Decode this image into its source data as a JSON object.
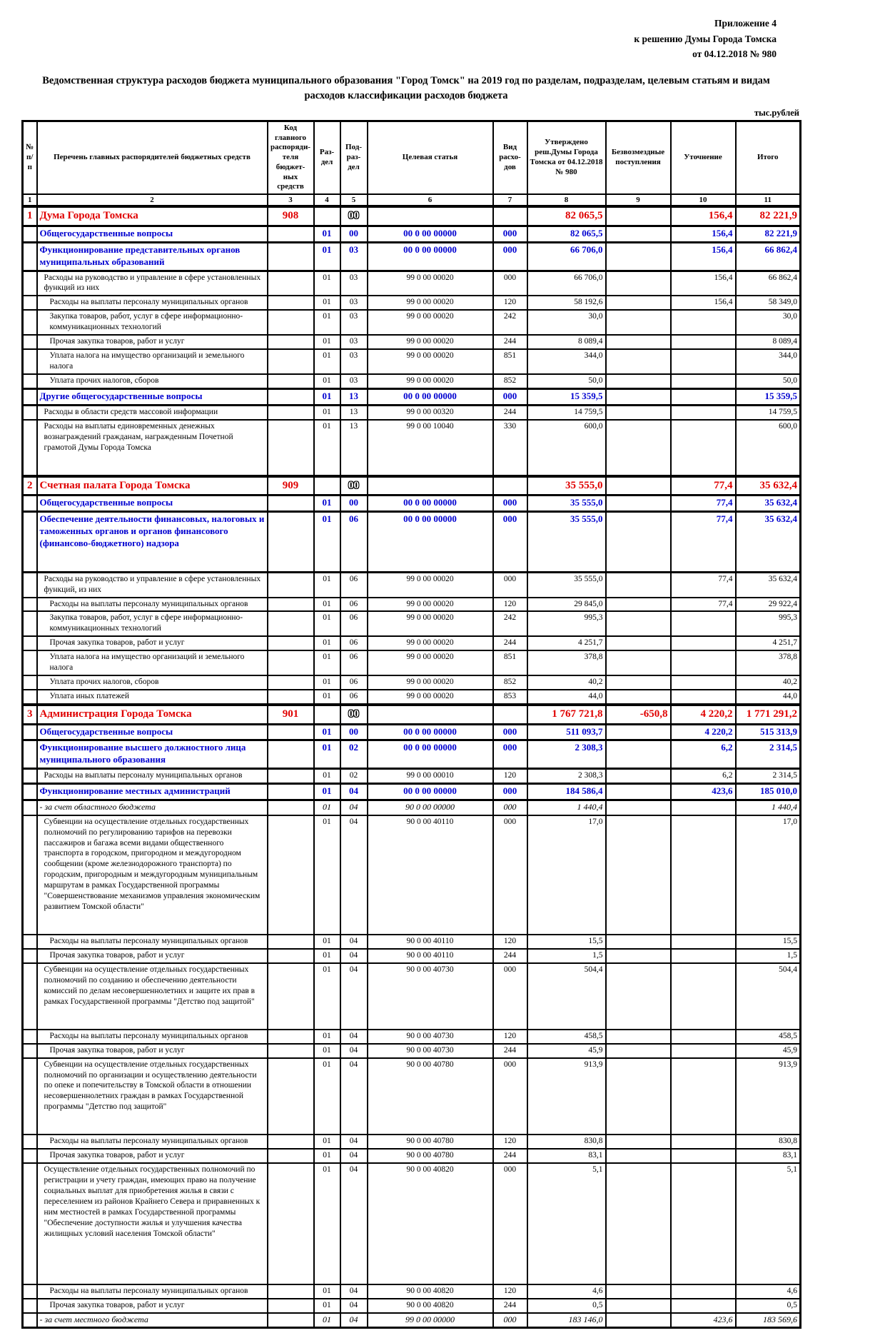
{
  "page": {
    "appendix_line1": "Приложение 4",
    "appendix_line2": "к решению Думы Города Томска",
    "appendix_line3": "от 04.12.2018 № 980",
    "title": "Ведомственная структура расходов бюджета муниципального образования \"Город Томск\" на 2019 год по разделам, подразделам, целевым статьям и видам расходов классификации расходов бюджета",
    "units_label": "тыс.рублей"
  },
  "colors": {
    "section_red": "#e00000",
    "subsection_blue": "#0000d0",
    "text_black": "#000000"
  },
  "table": {
    "columns": [
      "№ п/п",
      "Перечень главных распорядителей бюджетных средств",
      "Код главного распоряди-теля бюджет-ных средств",
      "Раз-дел",
      "Под-раз-дел",
      "Целевая статья",
      "Вид расхо-дов",
      "Утверждено реш.Думы Города Томска от 04.12.2018 № 980",
      "Безвозмездные поступления",
      "Уточнение",
      "Итого"
    ],
    "column_numbers": [
      "1",
      "2",
      "3",
      "4",
      "5",
      "6",
      "7",
      "8",
      "9",
      "10",
      "11"
    ],
    "rows": [
      {
        "n": "1",
        "name": "Дума Города Томска",
        "code": "908",
        "rz": "",
        "pr": "00",
        "pr_outline": true,
        "cs": "",
        "vr": "",
        "v8": "82 065,5",
        "v9": "",
        "v10": "156,4",
        "v11": "82 221,9",
        "style": "sec",
        "indent": 0
      },
      {
        "n": "",
        "name": "Общегосударственные вопросы",
        "code": "",
        "rz": "01",
        "pr": "00",
        "cs": "00 0 00 00000",
        "vr": "000",
        "v8": "82 065,5",
        "v9": "",
        "v10": "156,4",
        "v11": "82 221,9",
        "style": "sub",
        "indent": 0
      },
      {
        "n": "",
        "name": "Функционирование представительных органов муниципальных образований",
        "code": "",
        "rz": "01",
        "pr": "03",
        "cs": "00 0 00 00000",
        "vr": "000",
        "v8": "66 706,0",
        "v9": "",
        "v10": "156,4",
        "v11": "66 862,4",
        "style": "sub",
        "indent": 0
      },
      {
        "n": "",
        "name": "Расходы на руководство и управление в сфере установленных функций из них",
        "code": "",
        "rz": "01",
        "pr": "03",
        "cs": "99 0 00 00020",
        "vr": "000",
        "v8": "66 706,0",
        "v9": "",
        "v10": "156,4",
        "v11": "66 862,4",
        "style": "it",
        "indent": 1
      },
      {
        "n": "",
        "name": "Расходы на выплаты персоналу муниципальных органов",
        "code": "",
        "rz": "01",
        "pr": "03",
        "cs": "99 0 00 00020",
        "vr": "120",
        "v8": "58 192,6",
        "v9": "",
        "v10": "156,4",
        "v11": "58 349,0",
        "style": "it",
        "indent": 2
      },
      {
        "n": "",
        "name": "Закупка товаров, работ, услуг в сфере информационно-коммуникационных технологий",
        "code": "",
        "rz": "01",
        "pr": "03",
        "cs": "99 0 00 00020",
        "vr": "242",
        "v8": "30,0",
        "v9": "",
        "v10": "",
        "v11": "30,0",
        "style": "it",
        "indent": 2
      },
      {
        "n": "",
        "name": "Прочая закупка товаров, работ и услуг",
        "code": "",
        "rz": "01",
        "pr": "03",
        "cs": "99 0 00 00020",
        "vr": "244",
        "v8": "8 089,4",
        "v9": "",
        "v10": "",
        "v11": "8 089,4",
        "style": "it",
        "indent": 2
      },
      {
        "n": "",
        "name": "Уплата налога на имущество организаций и земельного налога",
        "code": "",
        "rz": "01",
        "pr": "03",
        "cs": "99 0 00 00020",
        "vr": "851",
        "v8": "344,0",
        "v9": "",
        "v10": "",
        "v11": "344,0",
        "style": "it",
        "indent": 2
      },
      {
        "n": "",
        "name": "Уплата прочих налогов, сборов",
        "code": "",
        "rz": "01",
        "pr": "03",
        "cs": "99 0 00 00020",
        "vr": "852",
        "v8": "50,0",
        "v9": "",
        "v10": "",
        "v11": "50,0",
        "style": "it",
        "indent": 2
      },
      {
        "n": "",
        "name": "Другие общегосударственные вопросы",
        "code": "",
        "rz": "01",
        "pr": "13",
        "cs": "00 0 00 00000",
        "vr": "000",
        "v8": "15 359,5",
        "v9": "",
        "v10": "",
        "v11": "15 359,5",
        "style": "sub",
        "indent": 0
      },
      {
        "n": "",
        "name": "Расходы в области средств массовой информации",
        "code": "",
        "rz": "01",
        "pr": "13",
        "cs": "99 0 00 00320",
        "vr": "244",
        "v8": "14 759,5",
        "v9": "",
        "v10": "",
        "v11": "14 759,5",
        "style": "it",
        "indent": 1
      },
      {
        "n": "",
        "name": "Расходы на выплаты единовременных денежных вознаграждений гражданам, награжденным Почетной грамотой Думы Города Томска",
        "code": "",
        "rz": "01",
        "pr": "13",
        "cs": "99 0 00 10040",
        "vr": "330",
        "v8": "600,0",
        "v9": "",
        "v10": "",
        "v11": "600,0",
        "style": "it",
        "indent": 1,
        "tall": 1
      },
      {
        "n": "2",
        "name": "Счетная палата Города Томска",
        "code": "909",
        "rz": "",
        "pr": "00",
        "pr_outline": true,
        "cs": "",
        "vr": "",
        "v8": "35 555,0",
        "v9": "",
        "v10": "77,4",
        "v11": "35 632,4",
        "style": "sec",
        "indent": 0
      },
      {
        "n": "",
        "name": "Общегосударственные вопросы",
        "code": "",
        "rz": "01",
        "pr": "00",
        "cs": "00 0 00 00000",
        "vr": "000",
        "v8": "35 555,0",
        "v9": "",
        "v10": "77,4",
        "v11": "35 632,4",
        "style": "sub",
        "indent": 0
      },
      {
        "n": "",
        "name": "Обеспечение деятельности финансовых, налоговых и таможенных органов и органов финансового (финансово-бюджетного) надзора",
        "code": "",
        "rz": "01",
        "pr": "06",
        "cs": "00 0 00 00000",
        "vr": "000",
        "v8": "35 555,0",
        "v9": "",
        "v10": "77,4",
        "v11": "35 632,4",
        "style": "sub",
        "indent": 0,
        "tall": 1
      },
      {
        "n": "",
        "name": "Расходы на руководство и управление в сфере установленных функций, из них",
        "code": "",
        "rz": "01",
        "pr": "06",
        "cs": "99 0 00 00020",
        "vr": "000",
        "v8": "35 555,0",
        "v9": "",
        "v10": "77,4",
        "v11": "35 632,4",
        "style": "it",
        "indent": 1
      },
      {
        "n": "",
        "name": "Расходы на выплаты персоналу муниципальных органов",
        "code": "",
        "rz": "01",
        "pr": "06",
        "cs": "99 0 00 00020",
        "vr": "120",
        "v8": "29 845,0",
        "v9": "",
        "v10": "77,4",
        "v11": "29 922,4",
        "style": "it",
        "indent": 2
      },
      {
        "n": "",
        "name": "Закупка товаров, работ, услуг в сфере информационно-коммуникационных технологий",
        "code": "",
        "rz": "01",
        "pr": "06",
        "cs": "99 0 00 00020",
        "vr": "242",
        "v8": "995,3",
        "v9": "",
        "v10": "",
        "v11": "995,3",
        "style": "it",
        "indent": 2
      },
      {
        "n": "",
        "name": "Прочая закупка товаров, работ и услуг",
        "code": "",
        "rz": "01",
        "pr": "06",
        "cs": "99 0 00 00020",
        "vr": "244",
        "v8": "4 251,7",
        "v9": "",
        "v10": "",
        "v11": "4 251,7",
        "style": "it",
        "indent": 2
      },
      {
        "n": "",
        "name": "Уплата налога на имущество организаций и земельного налога",
        "code": "",
        "rz": "01",
        "pr": "06",
        "cs": "99 0 00 00020",
        "vr": "851",
        "v8": "378,8",
        "v9": "",
        "v10": "",
        "v11": "378,8",
        "style": "it",
        "indent": 2
      },
      {
        "n": "",
        "name": "Уплата прочих налогов, сборов",
        "code": "",
        "rz": "01",
        "pr": "06",
        "cs": "99 0 00 00020",
        "vr": "852",
        "v8": "40,2",
        "v9": "",
        "v10": "",
        "v11": "40,2",
        "style": "it",
        "indent": 2
      },
      {
        "n": "",
        "name": "Уплата иных платежей",
        "code": "",
        "rz": "01",
        "pr": "06",
        "cs": "99 0 00 00020",
        "vr": "853",
        "v8": "44,0",
        "v9": "",
        "v10": "",
        "v11": "44,0",
        "style": "it",
        "indent": 2
      },
      {
        "n": "3",
        "name": "Администрация Города Томска",
        "code": "901",
        "rz": "",
        "pr": "00",
        "pr_outline": true,
        "cs": "",
        "vr": "",
        "v8": "1 767 721,8",
        "v9": "-650,8",
        "v10": "4 220,2",
        "v11": "1 771 291,2",
        "style": "sec",
        "indent": 0
      },
      {
        "n": "",
        "name": "Общегосударственные вопросы",
        "code": "",
        "rz": "01",
        "pr": "00",
        "cs": "00 0 00 00000",
        "vr": "000",
        "v8": "511 093,7",
        "v9": "",
        "v10": "4 220,2",
        "v11": "515 313,9",
        "style": "sub",
        "indent": 0
      },
      {
        "n": "",
        "name": "Функционирование высшего должностного лица муниципального образования",
        "code": "",
        "rz": "01",
        "pr": "02",
        "cs": "00 0 00 00000",
        "vr": "000",
        "v8": "2 308,3",
        "v9": "",
        "v10": "6,2",
        "v11": "2 314,5",
        "style": "sub",
        "indent": 0
      },
      {
        "n": "",
        "name": "Расходы на выплаты персоналу муниципальных органов",
        "code": "",
        "rz": "01",
        "pr": "02",
        "cs": "99 0 00 00010",
        "vr": "120",
        "v8": "2 308,3",
        "v9": "",
        "v10": "6,2",
        "v11": "2 314,5",
        "style": "it",
        "indent": 1
      },
      {
        "n": "",
        "name": "Функционирование местных администраций",
        "code": "",
        "rz": "01",
        "pr": "04",
        "cs": "00 0 00 00000",
        "vr": "000",
        "v8": "184 586,4",
        "v9": "",
        "v10": "423,6",
        "v11": "185 010,0",
        "style": "sub",
        "indent": 0
      },
      {
        "n": "",
        "name": "- за счет областного бюджета",
        "code": "",
        "rz": "01",
        "pr": "04",
        "cs": "90 0 00 00000",
        "vr": "000",
        "v8": "1 440,4",
        "v9": "",
        "v10": "",
        "v11": "1 440,4",
        "style": "note",
        "indent": 0
      },
      {
        "n": "",
        "name": "Субвенции на осуществление отдельных государственных полномочий по регулированию тарифов на перевозки пассажиров и багажа всеми видами общественного транспорта в городском, пригородном и междугородном сообщении (кроме железнодорожного транспорта) по городским, пригородным и междугородным муниципальным маршрутам в рамках Государственной программы \"Совершенствование механизмов управления экономическим развитием Томской области\"",
        "code": "",
        "rz": "01",
        "pr": "04",
        "cs": "90 0 00 40110",
        "vr": "000",
        "v8": "17,0",
        "v9": "",
        "v10": "",
        "v11": "17,0",
        "style": "it",
        "indent": 1,
        "tall": 1
      },
      {
        "n": "",
        "name": "Расходы на выплаты персоналу муниципальных органов",
        "code": "",
        "rz": "01",
        "pr": "04",
        "cs": "90 0 00 40110",
        "vr": "120",
        "v8": "15,5",
        "v9": "",
        "v10": "",
        "v11": "15,5",
        "style": "it",
        "indent": 2
      },
      {
        "n": "",
        "name": "Прочая закупка товаров, работ и услуг",
        "code": "",
        "rz": "01",
        "pr": "04",
        "cs": "90 0 00 40110",
        "vr": "244",
        "v8": "1,5",
        "v9": "",
        "v10": "",
        "v11": "1,5",
        "style": "it",
        "indent": 2
      },
      {
        "n": "",
        "name": "Субвенции на осуществление отдельных государственных полномочий по созданию и обеспечению деятельности комиссий по делам несовершеннолетних и защите их прав в рамках Государственной программы \"Детство под защитой\"",
        "code": "",
        "rz": "01",
        "pr": "04",
        "cs": "90 0 00 40730",
        "vr": "000",
        "v8": "504,4",
        "v9": "",
        "v10": "",
        "v11": "504,4",
        "style": "it",
        "indent": 1,
        "tall": 1
      },
      {
        "n": "",
        "name": "Расходы на выплаты персоналу муниципальных органов",
        "code": "",
        "rz": "01",
        "pr": "04",
        "cs": "90 0 00 40730",
        "vr": "120",
        "v8": "458,5",
        "v9": "",
        "v10": "",
        "v11": "458,5",
        "style": "it",
        "indent": 2
      },
      {
        "n": "",
        "name": "Прочая закупка товаров, работ и услуг",
        "code": "",
        "rz": "01",
        "pr": "04",
        "cs": "90 0 00 40730",
        "vr": "244",
        "v8": "45,9",
        "v9": "",
        "v10": "",
        "v11": "45,9",
        "style": "it",
        "indent": 2
      },
      {
        "n": "",
        "name": "Субвенции на осуществление отдельных государственных полномочий по организации и осуществлению деятельности по опеке и попечительству в Томской области в отношении несовершеннолетних граждан в рамках Государственной программы \"Детство под защитой\"",
        "code": "",
        "rz": "01",
        "pr": "04",
        "cs": "90 0 00 40780",
        "vr": "000",
        "v8": "913,9",
        "v9": "",
        "v10": "",
        "v11": "913,9",
        "style": "it",
        "indent": 1,
        "tall": 1
      },
      {
        "n": "",
        "name": "Расходы на выплаты персоналу муниципальных органов",
        "code": "",
        "rz": "01",
        "pr": "04",
        "cs": "90 0 00 40780",
        "vr": "120",
        "v8": "830,8",
        "v9": "",
        "v10": "",
        "v11": "830,8",
        "style": "it",
        "indent": 2
      },
      {
        "n": "",
        "name": "Прочая закупка товаров, работ и услуг",
        "code": "",
        "rz": "01",
        "pr": "04",
        "cs": "90 0 00 40780",
        "vr": "244",
        "v8": "83,1",
        "v9": "",
        "v10": "",
        "v11": "83,1",
        "style": "it",
        "indent": 2
      },
      {
        "n": "",
        "name": "Осуществление отдельных государственных полномочий по регистрации и учету граждан, имеющих право на получение социальных выплат для приобретения жилья в связи с переселением из районов Крайнего Севера и приравненных к ним местностей в рамках Государственной программы \"Обеспечение доступности жилья и улучшения качества жилищных условий населения Томской области\"",
        "code": "",
        "rz": "01",
        "pr": "04",
        "cs": "90 0 00 40820",
        "vr": "000",
        "v8": "5,1",
        "v9": "",
        "v10": "",
        "v11": "5,1",
        "style": "it",
        "indent": 1,
        "tall": 2
      },
      {
        "n": "",
        "name": "Расходы на выплаты персоналу муниципальных органов",
        "code": "",
        "rz": "01",
        "pr": "04",
        "cs": "90 0 00 40820",
        "vr": "120",
        "v8": "4,6",
        "v9": "",
        "v10": "",
        "v11": "4,6",
        "style": "it",
        "indent": 2
      },
      {
        "n": "",
        "name": "Прочая закупка товаров, работ и услуг",
        "code": "",
        "rz": "01",
        "pr": "04",
        "cs": "90 0 00 40820",
        "vr": "244",
        "v8": "0,5",
        "v9": "",
        "v10": "",
        "v11": "0,5",
        "style": "it",
        "indent": 2
      },
      {
        "n": "",
        "name": "- за счет местного бюджета",
        "code": "",
        "rz": "01",
        "pr": "04",
        "cs": "99 0 00 00000",
        "vr": "000",
        "v8": "183 146,0",
        "v9": "",
        "v10": "423,6",
        "v11": "183 569,6",
        "style": "note",
        "indent": 0
      }
    ]
  }
}
